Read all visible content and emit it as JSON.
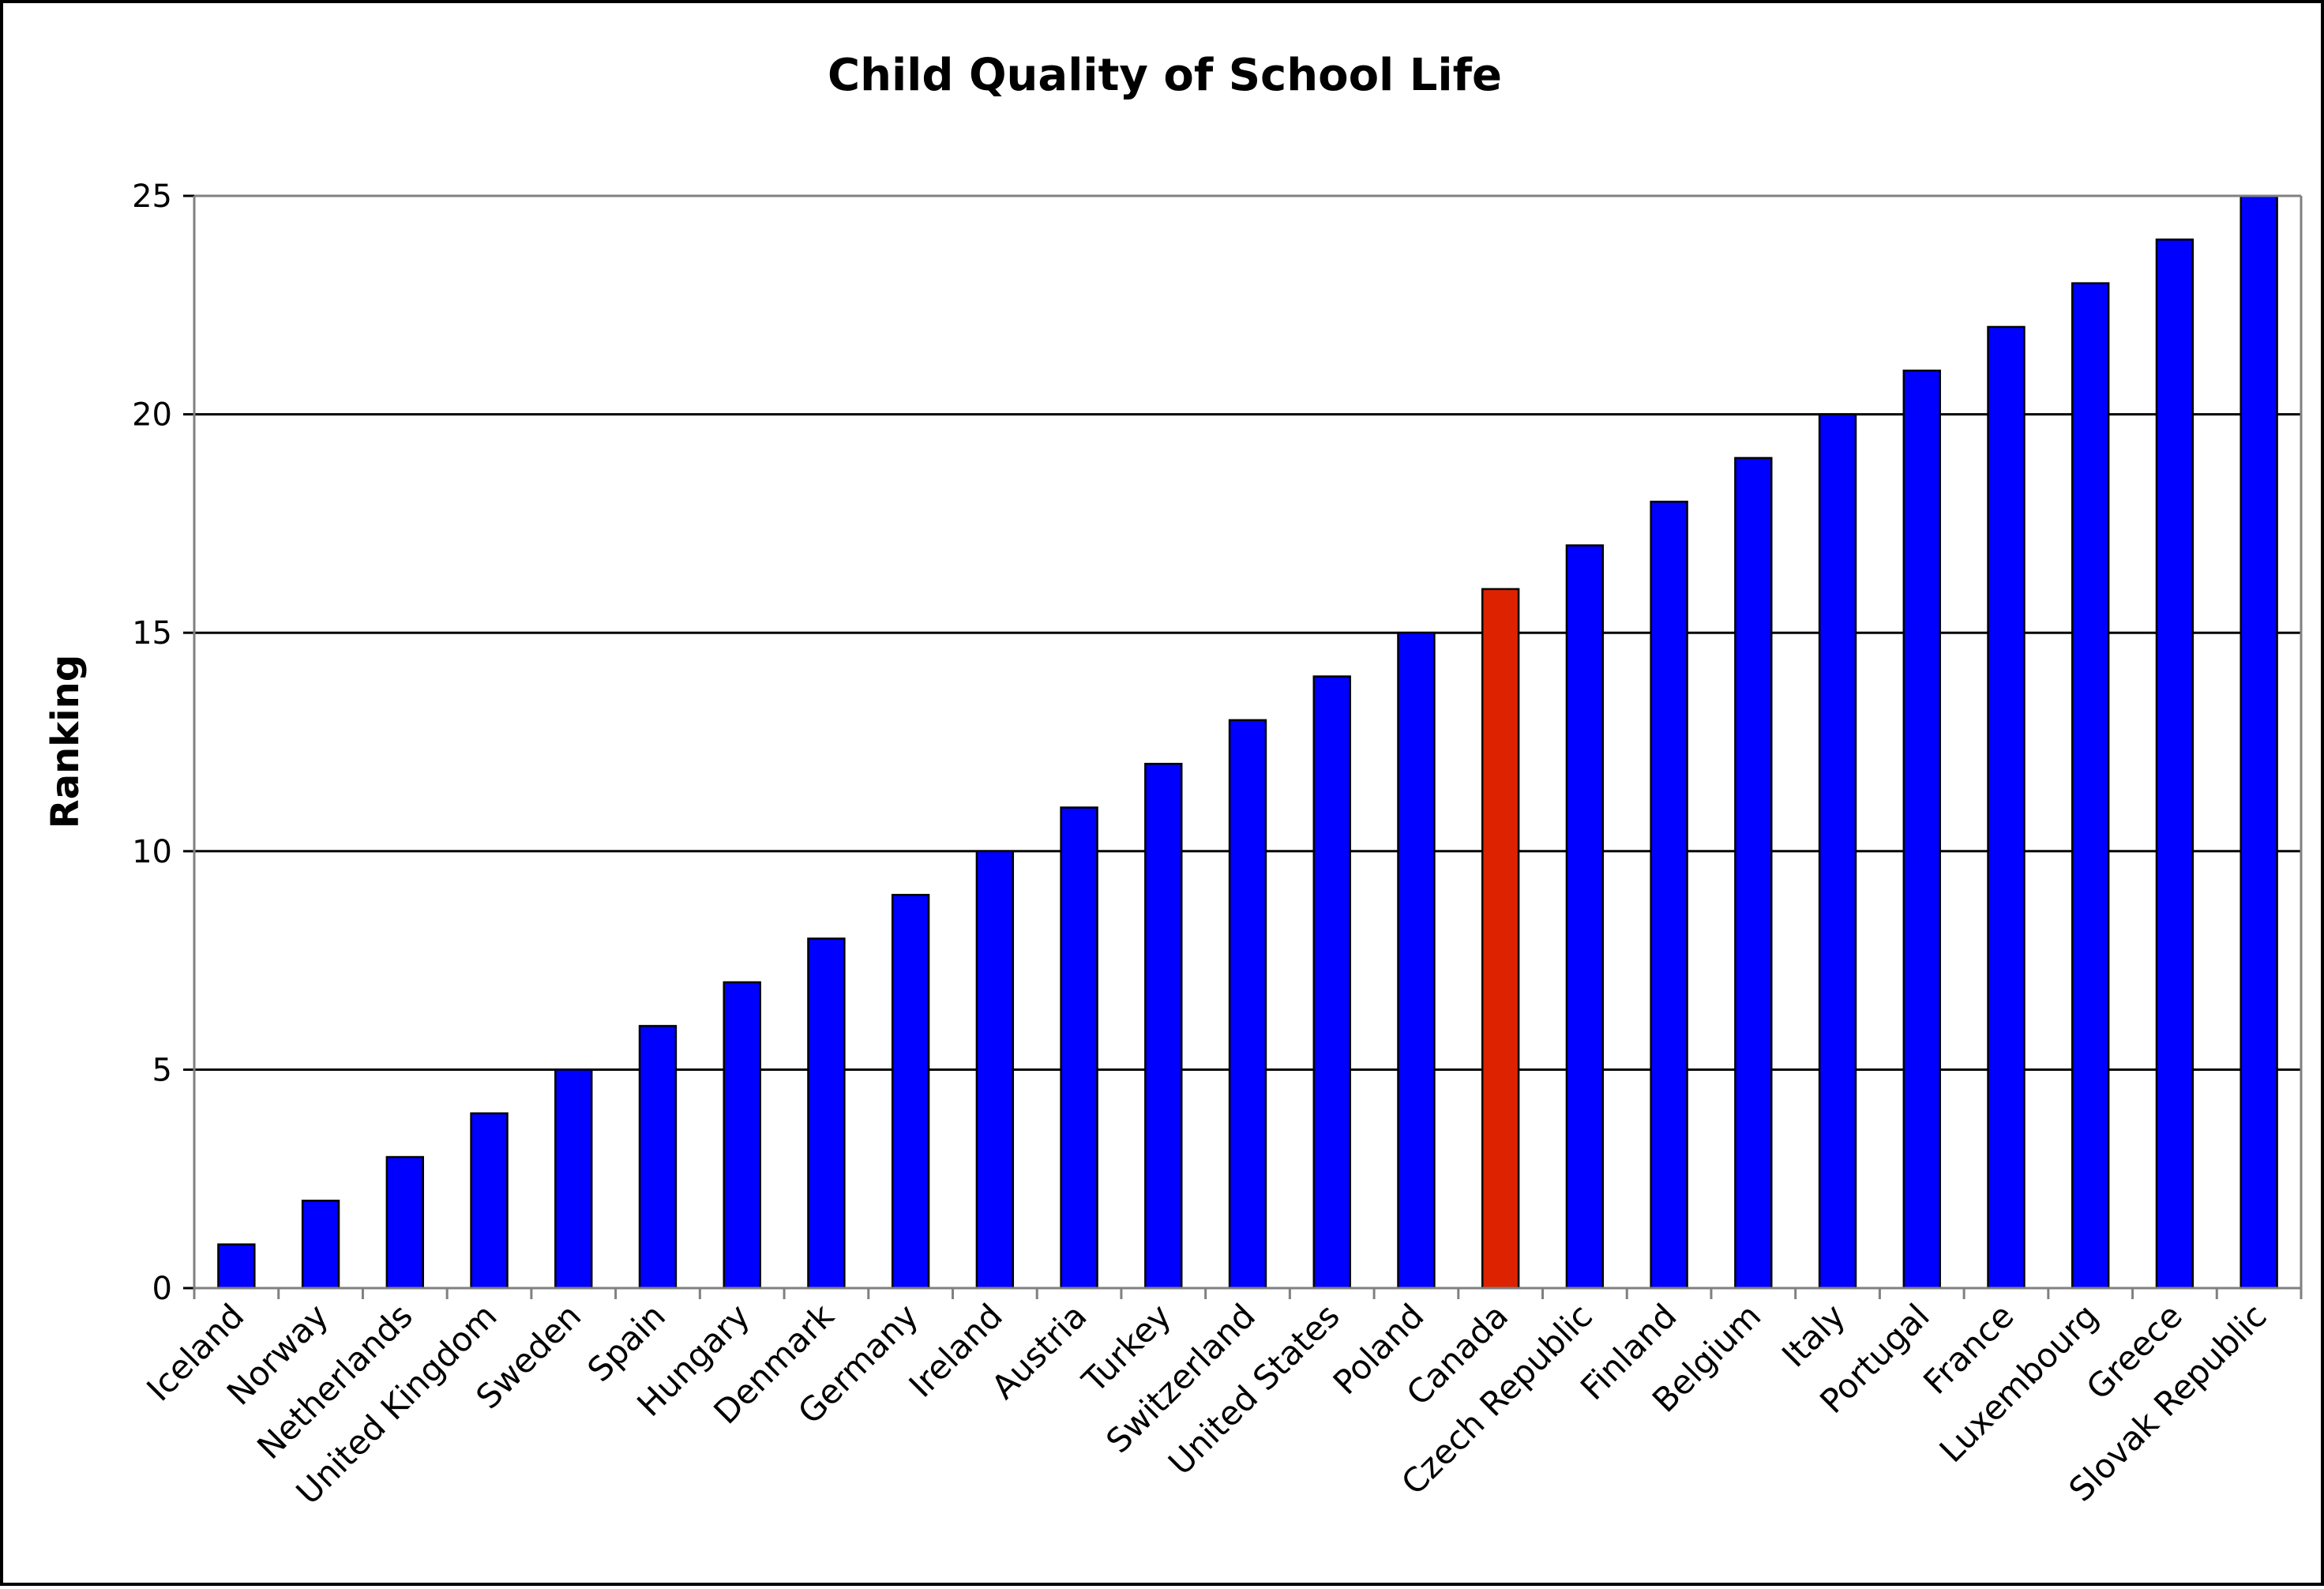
{
  "chart_data": {
    "type": "bar",
    "title": "Child Quality of School Life",
    "xlabel": "",
    "ylabel": "Ranking",
    "ylim": [
      0,
      25
    ],
    "yticks": [
      0,
      5,
      10,
      15,
      20,
      25
    ],
    "grid": true,
    "legend": "none",
    "categories": [
      "Iceland",
      "Norway",
      "Netherlands",
      "United Kingdom",
      "Sweden",
      "Spain",
      "Hungary",
      "Denmark",
      "Germany",
      "Ireland",
      "Austria",
      "Turkey",
      "Switzerland",
      "United States",
      "Poland",
      "Canada",
      "Czech Republic",
      "Finland",
      "Belgium",
      "Italy",
      "Portugal",
      "France",
      "Luxembourg",
      "Greece",
      "Slovak Republic"
    ],
    "values": [
      1,
      2,
      3,
      4,
      5,
      6,
      7,
      8,
      9,
      10,
      11,
      12,
      13,
      14,
      15,
      16,
      17,
      18,
      19,
      20,
      21,
      22,
      23,
      24,
      25
    ],
    "colors": {
      "default_bar": "#0000ff",
      "highlight_bar": "#dd2200",
      "highlight_category": "Canada",
      "bar_outline": "#000000",
      "gridline": "#000000",
      "background": "#ffffff"
    }
  }
}
